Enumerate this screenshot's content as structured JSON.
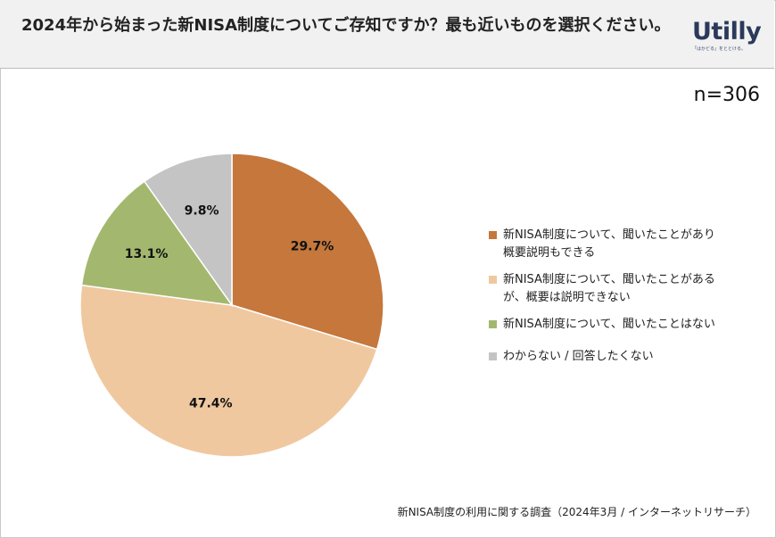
{
  "header": {
    "title": "2024年から始まった新NISA制度についてご存知ですか？最も近いものを選択ください。",
    "logo_text": "Utilly",
    "logo_tagline": "「はかどる」をととける。"
  },
  "sample_size_label": "n=306",
  "source_note": "新NISA制度の利用に関する調査（2024年3月 / インターネットリサーチ）",
  "colors": {
    "header_bg": "#f1f1f1",
    "slice_1": "#c5773c",
    "slice_2": "#f0c8a0",
    "slice_3": "#a3b86e",
    "slice_4": "#c4c4c4"
  },
  "chart_data": {
    "type": "pie",
    "title": "",
    "start_angle": "12 o'clock, clockwise",
    "legend_position": "right",
    "slices": [
      {
        "label": "新NISA制度について、聞いたことがあり概要説明もできる",
        "legend_lines": [
          "新NISA制度について、聞いたことがあり",
          "概要説明もできる"
        ],
        "value": 29.7,
        "value_label": "29.7%",
        "color": "#c5773c"
      },
      {
        "label": "新NISA制度について、聞いたことがあるが、概要は説明できない",
        "legend_lines": [
          "新NISA制度について、聞いたことがある",
          "が、概要は説明できない"
        ],
        "value": 47.4,
        "value_label": "47.4%",
        "color": "#f0c8a0"
      },
      {
        "label": "新NISA制度について、聞いたことはない",
        "legend_lines": [
          "新NISA制度について、聞いたことはない"
        ],
        "value": 13.1,
        "value_label": "13.1%",
        "color": "#a3b86e"
      },
      {
        "label": "わからない / 回答したくない",
        "legend_lines": [
          "わからない / 回答したくない"
        ],
        "value": 9.8,
        "value_label": "9.8%",
        "color": "#c4c4c4"
      }
    ]
  }
}
